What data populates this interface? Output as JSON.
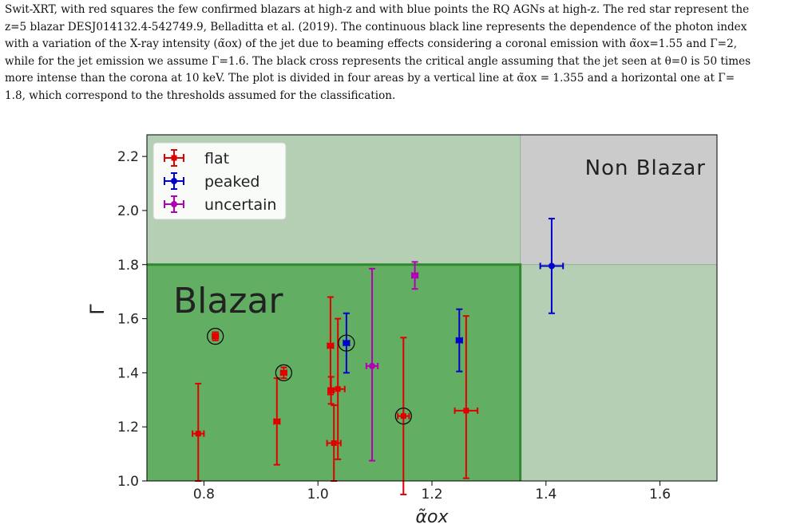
{
  "caption": {
    "lines": [
      "Swit-XRT, with red squares the few confirmed blazars at high-z and with blue points the RQ AGNs at high-z. The red star represent the",
      "z=5 blazar DESJ014132.4-542749.9, Belladitta et al. (2019). The continuous black line represents the dependence of the photon index",
      "with a variation of the X-ray intensity (α̃ox) of the jet due to beaming effects considering a coronal emission with α̃ox=1.55 and Γ=2,",
      "while for the jet emission we assume Γ=1.6. The black cross represents the critical angle assuming that the jet seen at θ=0 is 50 times",
      "more intense than the corona at 10 keV. The plot is divided in four areas by a vertical line at α̃ox = 1.355 and a horizontal one at Γ=",
      "1.8, which correspond to the thresholds assumed for the classification."
    ]
  },
  "chart_data": {
    "type": "scatter",
    "xlabel": "α̃ox",
    "ylabel": "Γ",
    "xlim": [
      0.7,
      1.7
    ],
    "ylim": [
      1.0,
      2.28
    ],
    "xticks": [
      0.8,
      1.0,
      1.2,
      1.4,
      1.6
    ],
    "yticks": [
      1.0,
      1.2,
      1.4,
      1.6,
      1.8,
      2.0,
      2.2
    ],
    "xtick_labels": [
      "0.8",
      "1.0",
      "1.2",
      "1.4",
      "1.6"
    ],
    "ytick_labels": [
      "1.0",
      "1.2",
      "1.4",
      "1.6",
      "1.8",
      "2.0",
      "2.2"
    ],
    "grid": false,
    "legend_position": "top-left",
    "thresholds": {
      "x": 1.355,
      "y": 1.8
    },
    "region_labels": {
      "blazar": "Blazar",
      "non_blazar": "Non Blazar"
    },
    "colors": {
      "blazar_region": "#62ae62",
      "border_region": "#b5cfb5",
      "non_blazar_region": "#cbcbcb",
      "threshold_line": "#2f8a2f",
      "flat": "#e00000",
      "peaked": "#0000cc",
      "uncertain": "#b400b4"
    },
    "series": [
      {
        "name": "flat",
        "points": [
          {
            "x": 0.79,
            "y": 1.175,
            "xerr": 0.01,
            "yerr_low": 0.175,
            "yerr_high": 0.185,
            "circled": false
          },
          {
            "x": 0.82,
            "y": 1.535,
            "xerr": 0.005,
            "yerr_low": 0.015,
            "yerr_high": 0.015,
            "circled": true
          },
          {
            "x": 0.928,
            "y": 1.22,
            "xerr": 0.005,
            "yerr_low": 0.16,
            "yerr_high": 0.16,
            "circled": false
          },
          {
            "x": 0.94,
            "y": 1.4,
            "xerr": 0.005,
            "yerr_low": 0.02,
            "yerr_high": 0.02,
            "circled": true
          },
          {
            "x": 1.022,
            "y": 1.5,
            "xerr": 0.005,
            "yerr_low": 0.18,
            "yerr_high": 0.18,
            "circled": false
          },
          {
            "x": 1.023,
            "y": 1.335,
            "xerr": 0.005,
            "yerr_low": 0.05,
            "yerr_high": 0.05,
            "circled": false
          },
          {
            "x": 1.028,
            "y": 1.14,
            "xerr": 0.012,
            "yerr_low": 0.14,
            "yerr_high": 0.14,
            "circled": false
          },
          {
            "x": 1.035,
            "y": 1.34,
            "xerr": 0.012,
            "yerr_low": 0.26,
            "yerr_high": 0.26,
            "circled": false
          },
          {
            "x": 1.15,
            "y": 1.24,
            "xerr": 0.01,
            "yerr_low": 0.29,
            "yerr_high": 0.29,
            "circled": true
          },
          {
            "x": 1.26,
            "y": 1.26,
            "xerr": 0.02,
            "yerr_low": 0.25,
            "yerr_high": 0.35,
            "circled": false
          }
        ]
      },
      {
        "name": "peaked",
        "points": [
          {
            "x": 1.05,
            "y": 1.51,
            "xerr": 0.005,
            "yerr_low": 0.11,
            "yerr_high": 0.11,
            "circled": true
          },
          {
            "x": 1.248,
            "y": 1.52,
            "xerr": 0.005,
            "yerr_low": 0.115,
            "yerr_high": 0.115,
            "circled": false
          },
          {
            "x": 1.41,
            "y": 1.795,
            "xerr": 0.02,
            "yerr_low": 0.175,
            "yerr_high": 0.175,
            "circled": false
          }
        ]
      },
      {
        "name": "uncertain",
        "points": [
          {
            "x": 1.095,
            "y": 1.425,
            "xerr": 0.01,
            "yerr_low": 0.35,
            "yerr_high": 0.36,
            "circled": false
          },
          {
            "x": 1.17,
            "y": 1.76,
            "xerr": 0.005,
            "yerr_low": 0.05,
            "yerr_high": 0.05,
            "circled": false
          }
        ]
      }
    ]
  }
}
